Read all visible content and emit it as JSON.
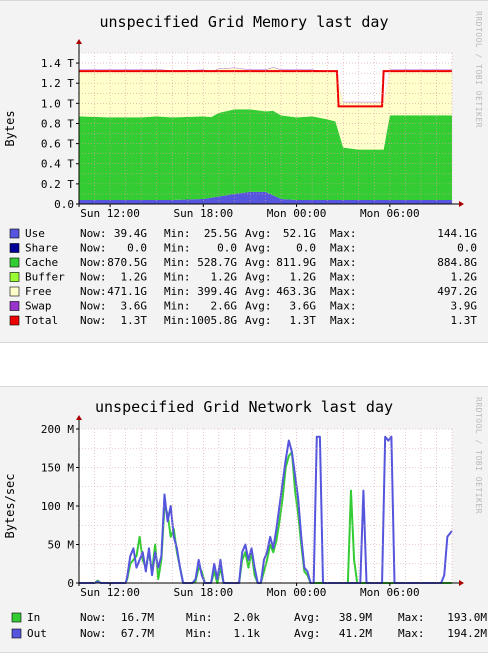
{
  "chart_data": [
    {
      "id": "memory",
      "type": "area",
      "title": "unspecified Grid Memory last day",
      "ylabel": "Bytes",
      "side_label": "RRDTOOL / TOBI OETIKER",
      "ylim": [
        0,
        1.5
      ],
      "yunit": "T",
      "yticks": [
        {
          "v": 0,
          "label": "0.0"
        },
        {
          "v": 0.2,
          "label": "0.2 T"
        },
        {
          "v": 0.4,
          "label": "0.4 T"
        },
        {
          "v": 0.6,
          "label": "0.6 T"
        },
        {
          "v": 0.8,
          "label": "0.8 T"
        },
        {
          "v": 1.0,
          "label": "1.0 T"
        },
        {
          "v": 1.2,
          "label": "1.2 T"
        },
        {
          "v": 1.4,
          "label": "1.4 T"
        }
      ],
      "xlim": [
        0,
        24
      ],
      "xticks": [
        {
          "v": 2,
          "label": "Sun 12:00"
        },
        {
          "v": 8,
          "label": "Sun 18:00"
        },
        {
          "v": 14,
          "label": "Mon 00:00"
        },
        {
          "v": 20,
          "label": "Mon 06:00"
        }
      ],
      "grid": true,
      "series": [
        {
          "name": "Use",
          "color": "#5555dd",
          "kind": "stack",
          "x": [
            0,
            2,
            4,
            6,
            8,
            10,
            11,
            12,
            13,
            14,
            15,
            16,
            17,
            18,
            19,
            20,
            21,
            22,
            24
          ],
          "values": [
            0.04,
            0.04,
            0.04,
            0.04,
            0.05,
            0.1,
            0.12,
            0.12,
            0.05,
            0.04,
            0.04,
            0.04,
            0.04,
            0.04,
            0.04,
            0.04,
            0.04,
            0.04,
            0.04
          ]
        },
        {
          "name": "Share",
          "color": "#000099",
          "kind": "stack",
          "x": [
            0,
            24
          ],
          "values": [
            0,
            0
          ]
        },
        {
          "name": "Cache",
          "color": "#33cc33",
          "kind": "stack",
          "x": [
            0,
            2,
            4,
            5,
            6,
            7,
            8,
            8.5,
            9,
            10,
            11,
            12,
            12.5,
            13,
            14,
            15,
            16,
            16.5,
            17,
            18,
            19,
            19.6,
            20,
            21,
            22,
            23,
            24
          ],
          "values": [
            0.83,
            0.82,
            0.82,
            0.83,
            0.82,
            0.82,
            0.82,
            0.8,
            0.83,
            0.84,
            0.82,
            0.8,
            0.84,
            0.83,
            0.82,
            0.83,
            0.8,
            0.78,
            0.52,
            0.5,
            0.5,
            0.5,
            0.84,
            0.84,
            0.84,
            0.84,
            0.84
          ]
        },
        {
          "name": "Buffer",
          "color": "#99ff33",
          "kind": "stack",
          "x": [
            0,
            24
          ],
          "values": [
            0.0012,
            0.0012
          ]
        },
        {
          "name": "Free",
          "color": "#ffffcc",
          "kind": "stack",
          "x": [
            0,
            2,
            4,
            6,
            8,
            10,
            11,
            12,
            13,
            14,
            15,
            16,
            16.5,
            17,
            18,
            19,
            19.6,
            20,
            22,
            24
          ],
          "values": [
            0.46,
            0.47,
            0.47,
            0.46,
            0.46,
            0.41,
            0.39,
            0.41,
            0.45,
            0.47,
            0.46,
            0.47,
            0.49,
            0.45,
            0.47,
            0.47,
            0.47,
            0.45,
            0.45,
            0.45
          ]
        },
        {
          "name": "Swap",
          "color": "#9933cc",
          "kind": "stack",
          "x": [
            0,
            24
          ],
          "values": [
            0.0036,
            0.0036
          ]
        },
        {
          "name": "Total",
          "color": "#ee0000",
          "kind": "line",
          "x": [
            0,
            16.6,
            16.7,
            19.5,
            19.6,
            24
          ],
          "values": [
            1.32,
            1.32,
            0.97,
            0.97,
            1.32,
            1.32
          ]
        }
      ],
      "legend": [
        {
          "name": "Use",
          "color": "#5555dd",
          "now": "39.4G",
          "min": "25.5G",
          "avg": "52.1G",
          "max": "144.1G"
        },
        {
          "name": "Share",
          "color": "#000099",
          "now": "0.0",
          "min": "0.0",
          "avg": "0.0",
          "max": "0.0"
        },
        {
          "name": "Cache",
          "color": "#33cc33",
          "now": "870.5G",
          "min": "528.7G",
          "avg": "811.9G",
          "max": "884.8G"
        },
        {
          "name": "Buffer",
          "color": "#99ff33",
          "now": "1.2G",
          "min": "1.2G",
          "avg": "1.2G",
          "max": "1.2G"
        },
        {
          "name": "Free",
          "color": "#ffffcc",
          "now": "471.1G",
          "min": "399.4G",
          "avg": "463.3G",
          "max": "497.2G"
        },
        {
          "name": "Swap",
          "color": "#9933cc",
          "now": "3.6G",
          "min": "2.6G",
          "avg": "3.6G",
          "max": "3.9G"
        },
        {
          "name": "Total",
          "color": "#ee0000",
          "now": "1.3T",
          "min": "1005.8G",
          "avg": "1.3T",
          "max": "1.3T"
        }
      ]
    },
    {
      "id": "network",
      "type": "line",
      "title": "unspecified Grid Network last day",
      "ylabel": "Bytes/sec",
      "side_label": "RRDTOOL / TOBI OETIKER",
      "ylim": [
        0,
        200
      ],
      "yunit": "M",
      "yticks": [
        {
          "v": 0,
          "label": "0"
        },
        {
          "v": 50,
          "label": "50 M"
        },
        {
          "v": 100,
          "label": "100 M"
        },
        {
          "v": 150,
          "label": "150 M"
        },
        {
          "v": 200,
          "label": "200 M"
        }
      ],
      "xlim": [
        0,
        24
      ],
      "xticks": [
        {
          "v": 2,
          "label": "Sun 12:00"
        },
        {
          "v": 8,
          "label": "Sun 18:00"
        },
        {
          "v": 14,
          "label": "Mon 00:00"
        },
        {
          "v": 20,
          "label": "Mon 06:00"
        }
      ],
      "grid": true,
      "series": [
        {
          "name": "In",
          "color": "#33cc33",
          "x": [
            0,
            1,
            1.2,
            1.4,
            1.6,
            3,
            3.1,
            3.3,
            3.5,
            3.7,
            3.9,
            4.1,
            4.3,
            4.5,
            4.7,
            4.9,
            5.1,
            5.3,
            5.5,
            5.7,
            5.9,
            6.1,
            6.3,
            6.5,
            6.7,
            6.9,
            7.1,
            7.3,
            7.5,
            7.7,
            7.9,
            8.1,
            8.3,
            8.5,
            8.7,
            8.9,
            9.1,
            9.3,
            9.5,
            9.7,
            9.9,
            10.1,
            10.3,
            10.5,
            10.7,
            10.9,
            11.1,
            11.3,
            11.5,
            11.7,
            11.9,
            12.1,
            12.3,
            12.5,
            12.7,
            12.9,
            13.1,
            13.3,
            13.5,
            13.7,
            13.9,
            14.1,
            14.3,
            14.5,
            14.7,
            14.9,
            15.1,
            15.3,
            15.5,
            15.7,
            15.9,
            16.1,
            16.3,
            16.5,
            16.7,
            16.9,
            17.1,
            17.3,
            17.5,
            17.7,
            17.9,
            18.1,
            18.3,
            18.5,
            18.7,
            18.9,
            19.1,
            19.3,
            19.5,
            19.7,
            19.9,
            20.1,
            20.3,
            20.5,
            20.7,
            20.9,
            21.1,
            21.3,
            21.5,
            21.7,
            21.9,
            22.1,
            22.3,
            22.5,
            22.7,
            22.9,
            23.1,
            23.3,
            23.5,
            23.7,
            24
          ],
          "values": [
            0,
            0,
            3,
            0,
            0,
            0,
            5,
            25,
            30,
            35,
            60,
            30,
            20,
            40,
            15,
            50,
            5,
            30,
            100,
            90,
            60,
            70,
            40,
            20,
            0,
            0,
            0,
            0,
            2,
            20,
            15,
            0,
            0,
            0,
            15,
            0,
            20,
            0,
            0,
            0,
            0,
            0,
            0,
            30,
            40,
            20,
            40,
            10,
            0,
            0,
            15,
            30,
            50,
            40,
            55,
            80,
            110,
            150,
            165,
            170,
            120,
            90,
            50,
            15,
            10,
            0,
            0,
            0,
            0,
            0,
            0,
            0,
            0,
            0,
            0,
            0,
            0,
            0,
            120,
            30,
            0,
            0,
            0,
            0,
            0,
            0,
            0,
            0,
            0,
            0,
            0,
            0,
            0,
            0,
            0,
            0,
            0,
            0,
            0,
            0,
            0,
            0,
            0,
            0,
            0,
            0,
            0,
            0,
            0,
            0,
            0
          ]
        },
        {
          "name": "Out",
          "color": "#5555dd",
          "x": [
            0,
            1,
            1.2,
            1.4,
            1.6,
            3,
            3.1,
            3.3,
            3.5,
            3.7,
            3.9,
            4.1,
            4.3,
            4.5,
            4.7,
            4.9,
            5.1,
            5.3,
            5.5,
            5.7,
            5.9,
            6.1,
            6.3,
            6.5,
            6.7,
            6.9,
            7.1,
            7.3,
            7.5,
            7.7,
            7.9,
            8.1,
            8.3,
            8.5,
            8.7,
            8.9,
            9.1,
            9.3,
            9.5,
            9.7,
            9.9,
            10.1,
            10.3,
            10.5,
            10.7,
            10.9,
            11.1,
            11.3,
            11.5,
            11.7,
            11.9,
            12.1,
            12.3,
            12.5,
            12.7,
            12.9,
            13.1,
            13.3,
            13.5,
            13.7,
            13.9,
            14.1,
            14.3,
            14.5,
            14.7,
            14.9,
            15.1,
            15.3,
            15.5,
            15.7,
            15.9,
            16.1,
            16.3,
            16.5,
            16.7,
            16.9,
            17.1,
            17.3,
            17.5,
            17.7,
            17.9,
            18.1,
            18.3,
            18.5,
            18.7,
            18.9,
            19.1,
            19.3,
            19.5,
            19.7,
            19.9,
            20.1,
            20.3,
            20.5,
            20.7,
            20.9,
            21.1,
            21.3,
            21.5,
            21.7,
            21.9,
            22.1,
            22.3,
            22.5,
            22.7,
            22.9,
            23.1,
            23.3,
            23.5,
            23.7,
            24
          ],
          "values": [
            0,
            0,
            2,
            0,
            0,
            0,
            8,
            35,
            45,
            20,
            30,
            40,
            15,
            45,
            10,
            40,
            20,
            35,
            115,
            80,
            100,
            60,
            45,
            20,
            0,
            0,
            0,
            0,
            5,
            30,
            10,
            0,
            0,
            0,
            25,
            5,
            30,
            0,
            0,
            0,
            0,
            0,
            0,
            40,
            50,
            30,
            45,
            20,
            0,
            0,
            30,
            40,
            60,
            45,
            70,
            100,
            130,
            160,
            185,
            170,
            140,
            110,
            60,
            20,
            15,
            0,
            0,
            190,
            190,
            0,
            0,
            0,
            0,
            0,
            0,
            0,
            0,
            0,
            0,
            0,
            0,
            0,
            120,
            0,
            0,
            0,
            0,
            0,
            0,
            190,
            185,
            190,
            0,
            0,
            0,
            0,
            0,
            0,
            0,
            0,
            0,
            0,
            0,
            0,
            0,
            0,
            0,
            0,
            10,
            60,
            67.7
          ]
        }
      ],
      "legend": [
        {
          "name": "In",
          "color": "#33cc33",
          "now": "16.7M",
          "min": "2.0k",
          "avg": "38.9M",
          "max": "193.0M"
        },
        {
          "name": "Out",
          "color": "#5555dd",
          "now": "67.7M",
          "min": "1.1k",
          "avg": "41.2M",
          "max": "194.2M"
        }
      ]
    }
  ],
  "legend_labels": {
    "now": "Now:",
    "min": "Min:",
    "avg": "Avg:",
    "max": "Max:"
  }
}
